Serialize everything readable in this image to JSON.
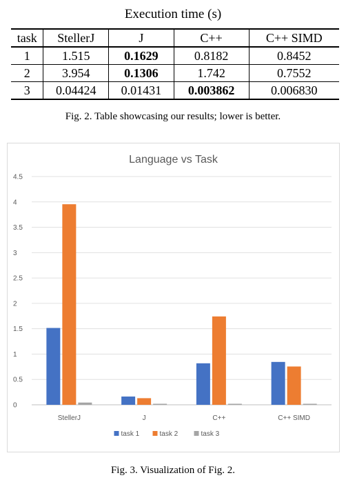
{
  "table": {
    "title": "Execution time (s)",
    "columns": [
      "task",
      "StellerJ",
      "J",
      "C++",
      "C++ SIMD"
    ],
    "rows": [
      {
        "cells": [
          "1",
          "1.515",
          "0.1629",
          "0.8182",
          "0.8452"
        ],
        "best_index": 2
      },
      {
        "cells": [
          "2",
          "3.954",
          "0.1306",
          "1.742",
          "0.7552"
        ],
        "best_index": 2
      },
      {
        "cells": [
          "3",
          "0.04424",
          "0.01431",
          "0.003862",
          "0.006830"
        ],
        "best_index": 3
      }
    ]
  },
  "captions": {
    "table": "Fig. 2.  Table showcasing our results; lower is better.",
    "chart": "Fig. 3.  Visualization of Fig. 2."
  },
  "chart_data": {
    "type": "bar",
    "title": "Language vs Task",
    "categories": [
      "StellerJ",
      "J",
      "C++",
      "C++ SIMD"
    ],
    "series": [
      {
        "name": "task 1",
        "color": "#4472c4",
        "values": [
          1.515,
          0.1629,
          0.8182,
          0.8452
        ]
      },
      {
        "name": "task 2",
        "color": "#ed7d31",
        "values": [
          3.954,
          0.1306,
          1.742,
          0.7552
        ]
      },
      {
        "name": "task 3",
        "color": "#a5a5a5",
        "values": [
          0.04424,
          0.01431,
          0.003862,
          0.00683
        ]
      }
    ],
    "ylim": [
      0,
      4.5
    ],
    "yticks": [
      "0",
      "0.5",
      "1",
      "1.5",
      "2",
      "2.5",
      "3",
      "3.5",
      "4",
      "4.5"
    ],
    "grid": true,
    "legend": "bottom"
  }
}
